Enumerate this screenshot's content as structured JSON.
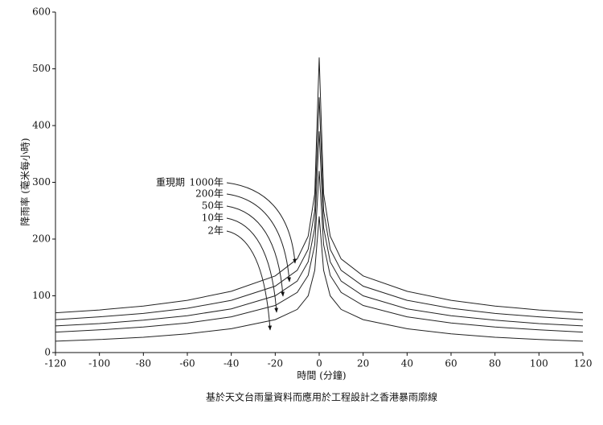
{
  "chart_data": {
    "type": "line",
    "title": "基於天文台雨量資料而應用於工程設計之香港暴雨廓線",
    "x_label": "時間 (分鐘)",
    "y_label": "降雨率 (毫米每小時)",
    "legend_title": "重現期",
    "x": [
      -120,
      -100,
      -80,
      -60,
      -40,
      -20,
      -10,
      -5,
      -2,
      0,
      2,
      5,
      10,
      20,
      40,
      60,
      80,
      100,
      120
    ],
    "series": [
      {
        "name": "1000年",
        "color": "#222222",
        "values": [
          70,
          75,
          82,
          92,
          108,
          135,
          165,
          205,
          280,
          520,
          280,
          205,
          165,
          135,
          108,
          92,
          82,
          75,
          70
        ]
      },
      {
        "name": "200年",
        "color": "#222222",
        "values": [
          58,
          63,
          69,
          78,
          92,
          117,
          145,
          182,
          250,
          450,
          250,
          182,
          145,
          117,
          92,
          78,
          69,
          63,
          58
        ]
      },
      {
        "name": "50年",
        "color": "#222222",
        "values": [
          47,
          51,
          57,
          65,
          77,
          100,
          126,
          160,
          220,
          390,
          220,
          160,
          126,
          100,
          77,
          65,
          57,
          51,
          47
        ]
      },
      {
        "name": "10年",
        "color": "#222222",
        "values": [
          36,
          40,
          45,
          52,
          63,
          83,
          106,
          136,
          190,
          320,
          190,
          136,
          106,
          83,
          63,
          52,
          45,
          40,
          36
        ]
      },
      {
        "name": "2年",
        "color": "#222222",
        "values": [
          20,
          23,
          27,
          33,
          42,
          58,
          76,
          100,
          145,
          240,
          145,
          100,
          76,
          58,
          42,
          33,
          27,
          23,
          20
        ]
      }
    ],
    "xlim": [
      -120,
      120
    ],
    "ylim": [
      0,
      600
    ],
    "xticks": [
      -120,
      -100,
      -80,
      -60,
      -40,
      -20,
      0,
      20,
      40,
      60,
      80,
      100,
      120
    ],
    "yticks": [
      0,
      100,
      200,
      300,
      400,
      500,
      600
    ]
  }
}
